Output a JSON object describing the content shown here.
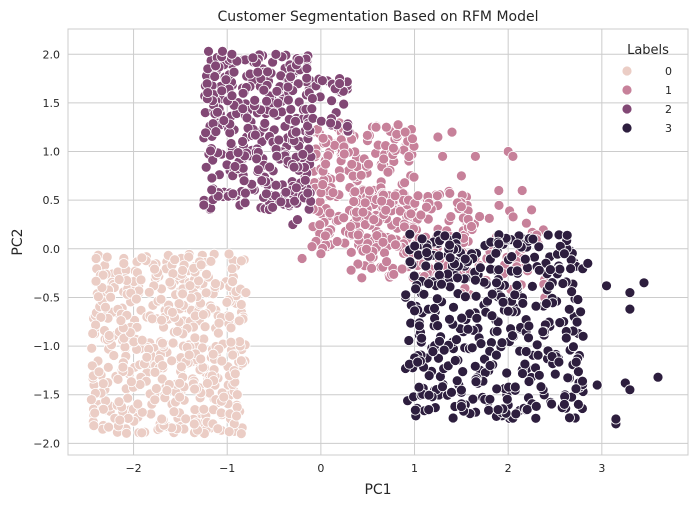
{
  "chart_data": {
    "type": "scatter",
    "title": "Customer Segmentation Based on RFM Model",
    "xlabel": "PC1",
    "ylabel": "PC2",
    "xlim": [
      -2.7,
      3.92
    ],
    "ylim": [
      -2.12,
      2.26
    ],
    "x_ticks": [
      "−2",
      "−1",
      "0",
      "1",
      "2",
      "3"
    ],
    "x_tick_values": [
      -2,
      -1,
      0,
      1,
      2,
      3
    ],
    "y_ticks": [
      "−2.0",
      "−1.5",
      "−1.0",
      "−0.5",
      "0.0",
      "0.5",
      "1.0",
      "1.5",
      "2.0"
    ],
    "y_tick_values": [
      -2.0,
      -1.5,
      -1.0,
      -0.5,
      0.0,
      0.5,
      1.0,
      1.5,
      2.0
    ],
    "grid": true,
    "background": "#ffffff",
    "grid_color": "#cccccc",
    "legend": {
      "title": "Labels",
      "placement": "top-right",
      "entries": [
        "0",
        "1",
        "2",
        "3"
      ]
    },
    "series": [
      {
        "name": "0",
        "color": "#ebcdc5",
        "clusters": [
          {
            "x_range": [
              -2.45,
              -0.8
            ],
            "y_range": [
              -1.9,
              -0.05
            ],
            "count": 520
          }
        ],
        "points": [
          [
            -2.4,
            -0.1
          ],
          [
            -2.45,
            -1.55
          ],
          [
            -0.85,
            -1.9
          ],
          [
            -1.1,
            -1.85
          ],
          [
            -0.8,
            -0.45
          ],
          [
            -0.85,
            -1.15
          ],
          [
            -2.3,
            -0.6
          ],
          [
            -1.7,
            -1.75
          ]
        ]
      },
      {
        "name": "1",
        "color": "#c7819a",
        "clusters": [
          {
            "x_range": [
              -0.1,
              1.0
            ],
            "y_range": [
              0.0,
              1.3
            ],
            "count": 260
          },
          {
            "x_range": [
              0.3,
              1.6
            ],
            "y_range": [
              -0.3,
              0.6
            ],
            "count": 150
          },
          {
            "x_range": [
              1.5,
              2.4
            ],
            "y_range": [
              -0.6,
              0.45
            ],
            "count": 60
          }
        ],
        "points": [
          [
            -0.2,
            -0.1
          ],
          [
            0.0,
            -0.05
          ],
          [
            1.4,
            1.2
          ],
          [
            1.25,
            1.15
          ],
          [
            1.65,
            0.95
          ],
          [
            1.9,
            0.6
          ],
          [
            2.0,
            1.0
          ],
          [
            2.15,
            0.6
          ],
          [
            2.05,
            0.95
          ],
          [
            2.25,
            0.4
          ],
          [
            1.3,
            0.95
          ],
          [
            1.5,
            0.75
          ],
          [
            0.9,
            1.2
          ],
          [
            0.7,
            1.25
          ]
        ]
      },
      {
        "name": "2",
        "color": "#824875",
        "clusters": [
          {
            "x_range": [
              -1.25,
              -0.1
            ],
            "y_range": [
              0.4,
              2.0
            ],
            "count": 360
          },
          {
            "x_range": [
              -0.1,
              0.3
            ],
            "y_range": [
              1.2,
              1.75
            ],
            "count": 30
          }
        ],
        "points": [
          [
            -1.2,
            2.03
          ],
          [
            -1.05,
            2.03
          ],
          [
            -0.95,
            2.0
          ],
          [
            0.2,
            1.75
          ],
          [
            0.2,
            1.7
          ],
          [
            -1.25,
            0.45
          ],
          [
            -0.3,
            0.25
          ],
          [
            -0.25,
            0.3
          ]
        ]
      },
      {
        "name": "3",
        "color": "#2d1e3e",
        "clusters": [
          {
            "x_range": [
              0.9,
              2.8
            ],
            "y_range": [
              -1.75,
              0.15
            ],
            "count": 420
          }
        ],
        "points": [
          [
            3.6,
            -1.32
          ],
          [
            3.15,
            -1.8
          ],
          [
            3.15,
            -1.75
          ],
          [
            3.45,
            -0.35
          ],
          [
            3.3,
            -0.45
          ],
          [
            3.3,
            -0.62
          ],
          [
            3.25,
            -1.38
          ],
          [
            3.3,
            -1.45
          ],
          [
            3.05,
            -0.38
          ],
          [
            2.85,
            -0.15
          ],
          [
            2.75,
            -1.6
          ],
          [
            2.95,
            -1.4
          ],
          [
            2.8,
            -0.9
          ],
          [
            2.3,
            -1.62
          ],
          [
            2.6,
            -1.6
          ],
          [
            2.6,
            -0.05
          ],
          [
            2.1,
            0.05
          ],
          [
            1.9,
            0.05
          ],
          [
            0.95,
            0.15
          ]
        ]
      }
    ]
  }
}
